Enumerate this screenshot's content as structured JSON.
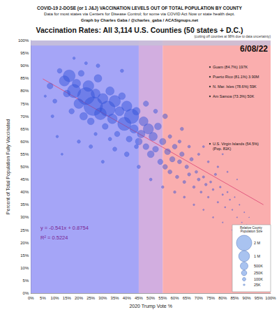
{
  "chart_data": {
    "type": "scatter",
    "header": [
      "COVID-19 2-DOSE (or 1 J&J) VACCINATION LEVELS OUT OF TOTAL POPULATION BY COUNTY",
      "Data for most states via Centers for Disease Control; for some via COVID Act Now or state health dept.",
      "Graph by Charles Gaba / @charles_gaba / ACASignups.net"
    ],
    "title": "Vaccination Rates: All 3,114 U.S. Counties (50 states + D.C.)",
    "date": "6/08/22",
    "note": "(cutting off counties at 98% due to data uncertainty)",
    "xlabel": "2020 Trump Vote %",
    "ylabel": "Percent of Total Population Fully Vaccinated",
    "xlim": [
      0,
      100
    ],
    "ylim": [
      0,
      100
    ],
    "xticks": [
      {
        "value": 0,
        "label": "0%"
      },
      {
        "value": 5,
        "label": "5%"
      },
      {
        "value": 10,
        "label": "10%"
      },
      {
        "value": 15,
        "label": "15%"
      },
      {
        "value": 20,
        "label": "20%"
      },
      {
        "value": 25,
        "label": "25%"
      },
      {
        "value": 30,
        "label": "30%"
      },
      {
        "value": 35,
        "label": "35%"
      },
      {
        "value": 40,
        "label": "40%"
      },
      {
        "value": 45,
        "label": "45%"
      },
      {
        "value": 50,
        "label": "50%"
      },
      {
        "value": 55,
        "label": "55%"
      },
      {
        "value": 60,
        "label": "60%"
      },
      {
        "value": 65,
        "label": "65%"
      },
      {
        "value": 70,
        "label": "70%"
      },
      {
        "value": 75,
        "label": "75%"
      },
      {
        "value": 80,
        "label": "80%"
      },
      {
        "value": 85,
        "label": "85%"
      },
      {
        "value": 90,
        "label": "90%"
      },
      {
        "value": 95,
        "label": "95%"
      },
      {
        "value": 100,
        "label": "100%"
      }
    ],
    "yticks": [
      {
        "value": 0,
        "label": "0%"
      },
      {
        "value": 5,
        "label": "5%"
      },
      {
        "value": 10,
        "label": "10%"
      },
      {
        "value": 15,
        "label": "15%"
      },
      {
        "value": 20,
        "label": "20%"
      },
      {
        "value": 25,
        "label": "25%"
      },
      {
        "value": 30,
        "label": "30%"
      },
      {
        "value": 35,
        "label": "35%"
      },
      {
        "value": 40,
        "label": "40%"
      },
      {
        "value": 45,
        "label": "45%"
      },
      {
        "value": 50,
        "label": "50%"
      },
      {
        "value": 55,
        "label": "55%"
      },
      {
        "value": 60,
        "label": "60%"
      },
      {
        "value": 65,
        "label": "65%"
      },
      {
        "value": 70,
        "label": "70%"
      },
      {
        "value": 75,
        "label": "75%"
      },
      {
        "value": 80,
        "label": "80%"
      },
      {
        "value": 85,
        "label": "85%"
      },
      {
        "value": 90,
        "label": "90%"
      },
      {
        "value": 95,
        "label": "95%"
      },
      {
        "value": 100,
        "label": "100%"
      }
    ],
    "grid": true,
    "bands": [
      {
        "from": 0,
        "to": 45,
        "color": "#8f8ff5"
      },
      {
        "from": 45,
        "to": 55,
        "color": "#c79ad8"
      },
      {
        "from": 55,
        "to": 100,
        "color": "#f99a9a"
      }
    ],
    "cutoff": {
      "from": 98,
      "to": 100,
      "color": "#c8c0d8"
    },
    "color": "#2f4fd8",
    "marker": "circle",
    "x": [
      8,
      10,
      12,
      14,
      15,
      16,
      17,
      18,
      19,
      20,
      21,
      22,
      23,
      24,
      25,
      26,
      27,
      28,
      29,
      30,
      31,
      32,
      33,
      34,
      35,
      36,
      37,
      38,
      39,
      40,
      41,
      42,
      43,
      44,
      45,
      11,
      13,
      9,
      20,
      25,
      30,
      35,
      40,
      27,
      33,
      44,
      6,
      18,
      23,
      28,
      38,
      46,
      47,
      48,
      49,
      50,
      51,
      52,
      53,
      54,
      55,
      56,
      57,
      58,
      59,
      60,
      61,
      62,
      63,
      64,
      65,
      66,
      67,
      68,
      69,
      70,
      71,
      72,
      73,
      74,
      75,
      76,
      77,
      78,
      79,
      80,
      81,
      82,
      83,
      84,
      85,
      86,
      87,
      88,
      89,
      90,
      91,
      92,
      94,
      58,
      62,
      66,
      70,
      74,
      78,
      82,
      86,
      60,
      64,
      68,
      72,
      76,
      80,
      84,
      88,
      56,
      52,
      48,
      63,
      45,
      50,
      55,
      72,
      80
    ],
    "values": [
      82,
      76,
      88,
      84,
      79,
      86,
      72,
      80,
      83,
      75,
      87,
      70,
      78,
      82,
      68,
      74,
      79,
      85,
      71,
      77,
      66,
      73,
      80,
      69,
      76,
      63,
      72,
      78,
      67,
      74,
      61,
      70,
      65,
      72,
      60,
      62,
      55,
      70,
      60,
      58,
      52,
      57,
      55,
      63,
      61,
      58,
      78,
      93,
      91,
      90,
      88,
      63,
      68,
      58,
      65,
      55,
      62,
      57,
      66,
      52,
      60,
      50,
      56,
      48,
      53,
      58,
      46,
      52,
      55,
      44,
      50,
      47,
      53,
      42,
      48,
      45,
      40,
      46,
      43,
      38,
      44,
      41,
      47,
      36,
      42,
      39,
      34,
      40,
      37,
      33,
      38,
      30,
      35,
      28,
      32,
      27,
      30,
      25,
      22,
      62,
      60,
      58,
      55,
      52,
      50,
      48,
      45,
      40,
      38,
      35,
      33,
      30,
      28,
      25,
      22,
      70,
      72,
      75,
      65,
      50,
      45,
      42,
      58,
      55
    ],
    "population": [
      300000,
      150000,
      200000,
      900000,
      400000,
      1200000,
      250000,
      1500000,
      600000,
      800000,
      300000,
      500000,
      2500000,
      1000000,
      400000,
      3000000,
      700000,
      500000,
      1200000,
      900000,
      300000,
      2000000,
      600000,
      800000,
      1100000,
      250000,
      700000,
      400000,
      1500000,
      900000,
      300000,
      1800000,
      600000,
      500000,
      400000,
      60000,
      40000,
      80000,
      100000,
      120000,
      80000,
      150000,
      200000,
      90000,
      110000,
      150000,
      50000,
      60000,
      80000,
      120000,
      100000,
      500000,
      700000,
      300000,
      900000,
      400000,
      600000,
      300000,
      400000,
      250000,
      350000,
      200000,
      300000,
      150000,
      250000,
      200000,
      100000,
      150000,
      180000,
      80000,
      120000,
      90000,
      110000,
      60000,
      70000,
      80000,
      40000,
      50000,
      60000,
      30000,
      40000,
      35000,
      50000,
      25000,
      30000,
      25000,
      15000,
      20000,
      15000,
      12000,
      10000,
      8000,
      10000,
      6000,
      8000,
      5000,
      5000,
      4000,
      3000,
      120000,
      90000,
      70000,
      50000,
      40000,
      30000,
      20000,
      10000,
      60000,
      40000,
      30000,
      20000,
      15000,
      10000,
      8000,
      5000,
      200000,
      150000,
      250000,
      100000,
      100000,
      70000,
      60000,
      40000,
      20000
    ],
    "trendline": {
      "x": [
        5,
        97
      ],
      "values": [
        84.8,
        35.0
      ],
      "color": "#e0507a",
      "equation": "y = -0.541x + 0.8754",
      "r_squared": "R² = 0.5224"
    },
    "annotations": [
      {
        "text": "Guam (84.7%) 197K"
      },
      {
        "text": "Puerto Rico (81.1%) 3.90M"
      },
      {
        "text": "N. Mar. Isles (78.6%) 59K"
      },
      {
        "text": "Am Samoa (73.3%) 50K"
      },
      {
        "text": "U.S. Virgin Islands (54.5%)",
        "subtext": "(Pop. 81K)"
      }
    ],
    "size_legend": {
      "title": "Relative County Population Size",
      "sizes": [
        {
          "value": 2000000,
          "label": "2 M"
        },
        {
          "value": 1000000,
          "label": "1 M"
        },
        {
          "value": 500000,
          "label": "500K"
        },
        {
          "value": 250000,
          "label": "250K"
        },
        {
          "value": 100000,
          "label": "100K"
        },
        {
          "value": 25000,
          "label": "25K"
        }
      ]
    }
  }
}
